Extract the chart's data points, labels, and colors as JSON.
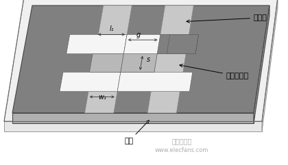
{
  "label_microstrip": "微带线",
  "label_dgs": "缺陷地结构",
  "label_ground": "地板",
  "label_l1": "l₁",
  "label_g": "g",
  "label_s": "s",
  "label_w1": "w₁",
  "watermark1": "电子发烧友",
  "watermark2": "www.elecfans.com",
  "board_top_color": "#808080",
  "board_front_color": "#b0b0b0",
  "board_right_color": "#999999",
  "board_edge_color": "#444444",
  "outer_frame_color": "#cccccc",
  "microstrip_color": "#c8c8c8",
  "dgs_white": "#f5f5f5",
  "dgs_gray": "#b8b8b8",
  "annotation_color": "#222222"
}
